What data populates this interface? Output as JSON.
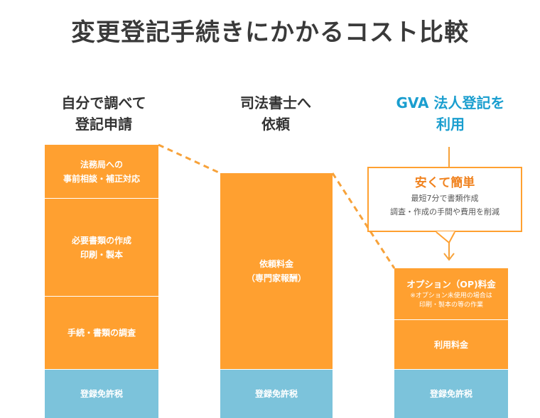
{
  "title": "変更登記手続きにかかるコスト比較",
  "columns": [
    {
      "heading": [
        "自分で調べて",
        "登記申請"
      ],
      "segments": [
        {
          "lines": [
            "法務局への",
            "事前相談・補正対応"
          ]
        },
        {
          "lines": [
            "必要書類の作成",
            "印刷・製本"
          ]
        },
        {
          "lines": [
            "手続・書類の調査"
          ]
        },
        {
          "lines": [
            "登録免許税"
          ]
        }
      ]
    },
    {
      "heading": [
        "司法書士へ",
        "依頼"
      ],
      "segments": [
        {
          "lines": [
            "依頼料金",
            "（専門家報酬）"
          ]
        },
        {
          "lines": [
            "登録免許税"
          ]
        }
      ]
    },
    {
      "heading": [
        "GVA 法人登記を",
        "利用"
      ],
      "segments": [
        {
          "title": "オプション（OP)料金",
          "notes": [
            "※オプション未使用の場合は",
            "印刷・製本の等の作業"
          ]
        },
        {
          "lines": [
            "利用料金"
          ]
        },
        {
          "lines": [
            "登録免許税"
          ]
        }
      ]
    }
  ],
  "callout": {
    "title": "安くて簡単",
    "lines": [
      "最短7分で書類作成",
      "調査・作成の手間や費用を削減"
    ]
  },
  "colors": {
    "orange": "#ffa030",
    "blue": "#7cc3db",
    "accent": "#1a9ecf",
    "title": "#3a3a3a"
  }
}
